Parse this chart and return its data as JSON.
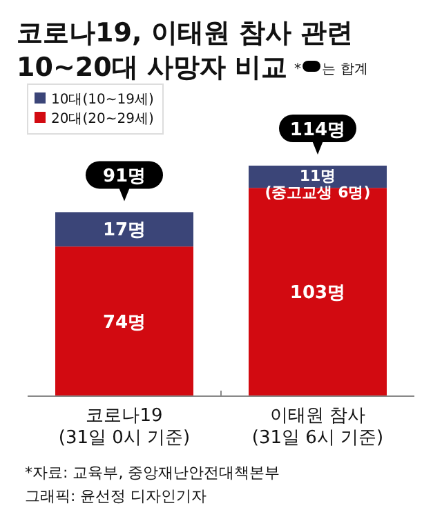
{
  "chart_data": {
    "type": "bar",
    "title": "코로나19, 이태원 참사 관련\n10~20대 사망자 비교",
    "categories": [
      "코로나19\n(31일 0시 기준)",
      "이태원 참사\n(31일 6시 기준)"
    ],
    "stacked": true,
    "legend": "top left",
    "series": [
      {
        "name": "20대(20~29세)",
        "color": "#d20a11",
        "values": [
          74,
          103
        ],
        "value_labels": [
          "74명",
          "103명"
        ]
      },
      {
        "name": "10대(10~19세)",
        "color": "#3b4578",
        "values": [
          17,
          11
        ],
        "value_labels": [
          "17명",
          "11명\n(중고교생 6명)"
        ]
      }
    ],
    "totals": [
      "91명",
      "114명"
    ],
    "annotations": [
      "* 는 합계",
      "*자료: 교육부, 중앙재난안전대책본부",
      "그래픽: 윤선정 디자인기자"
    ]
  }
}
